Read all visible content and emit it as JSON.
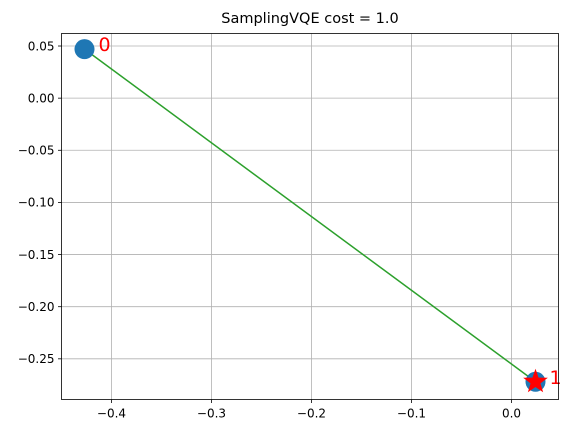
{
  "chart_data": {
    "type": "scatter",
    "title": "SamplingVQE cost = 1.0",
    "xlabel": "",
    "ylabel": "",
    "xlim": [
      -0.45,
      0.047
    ],
    "ylim": [
      -0.289,
      0.062
    ],
    "x_ticks": [
      -0.4,
      -0.3,
      -0.2,
      -0.1,
      0.0
    ],
    "x_tick_labels": [
      "−0.4",
      "−0.3",
      "−0.2",
      "−0.1",
      "0.0"
    ],
    "y_ticks": [
      0.05,
      0.0,
      -0.05,
      -0.1,
      -0.15,
      -0.2,
      -0.25
    ],
    "y_tick_labels": [
      "0.05",
      "0.00",
      "−0.05",
      "−0.10",
      "−0.15",
      "−0.20",
      "−0.25"
    ],
    "grid": true,
    "points": [
      {
        "label": "0",
        "x": -0.427,
        "y": 0.047
      },
      {
        "label": "1",
        "x": 0.024,
        "y": -0.272
      }
    ],
    "edge": {
      "from": 0,
      "to": 1
    },
    "star_point": 1,
    "colors": {
      "marker": "#1f77b4",
      "edge": "#2ca02c",
      "star": "#ff0000",
      "label": "#ff0000",
      "grid": "#b0b0b0"
    }
  }
}
